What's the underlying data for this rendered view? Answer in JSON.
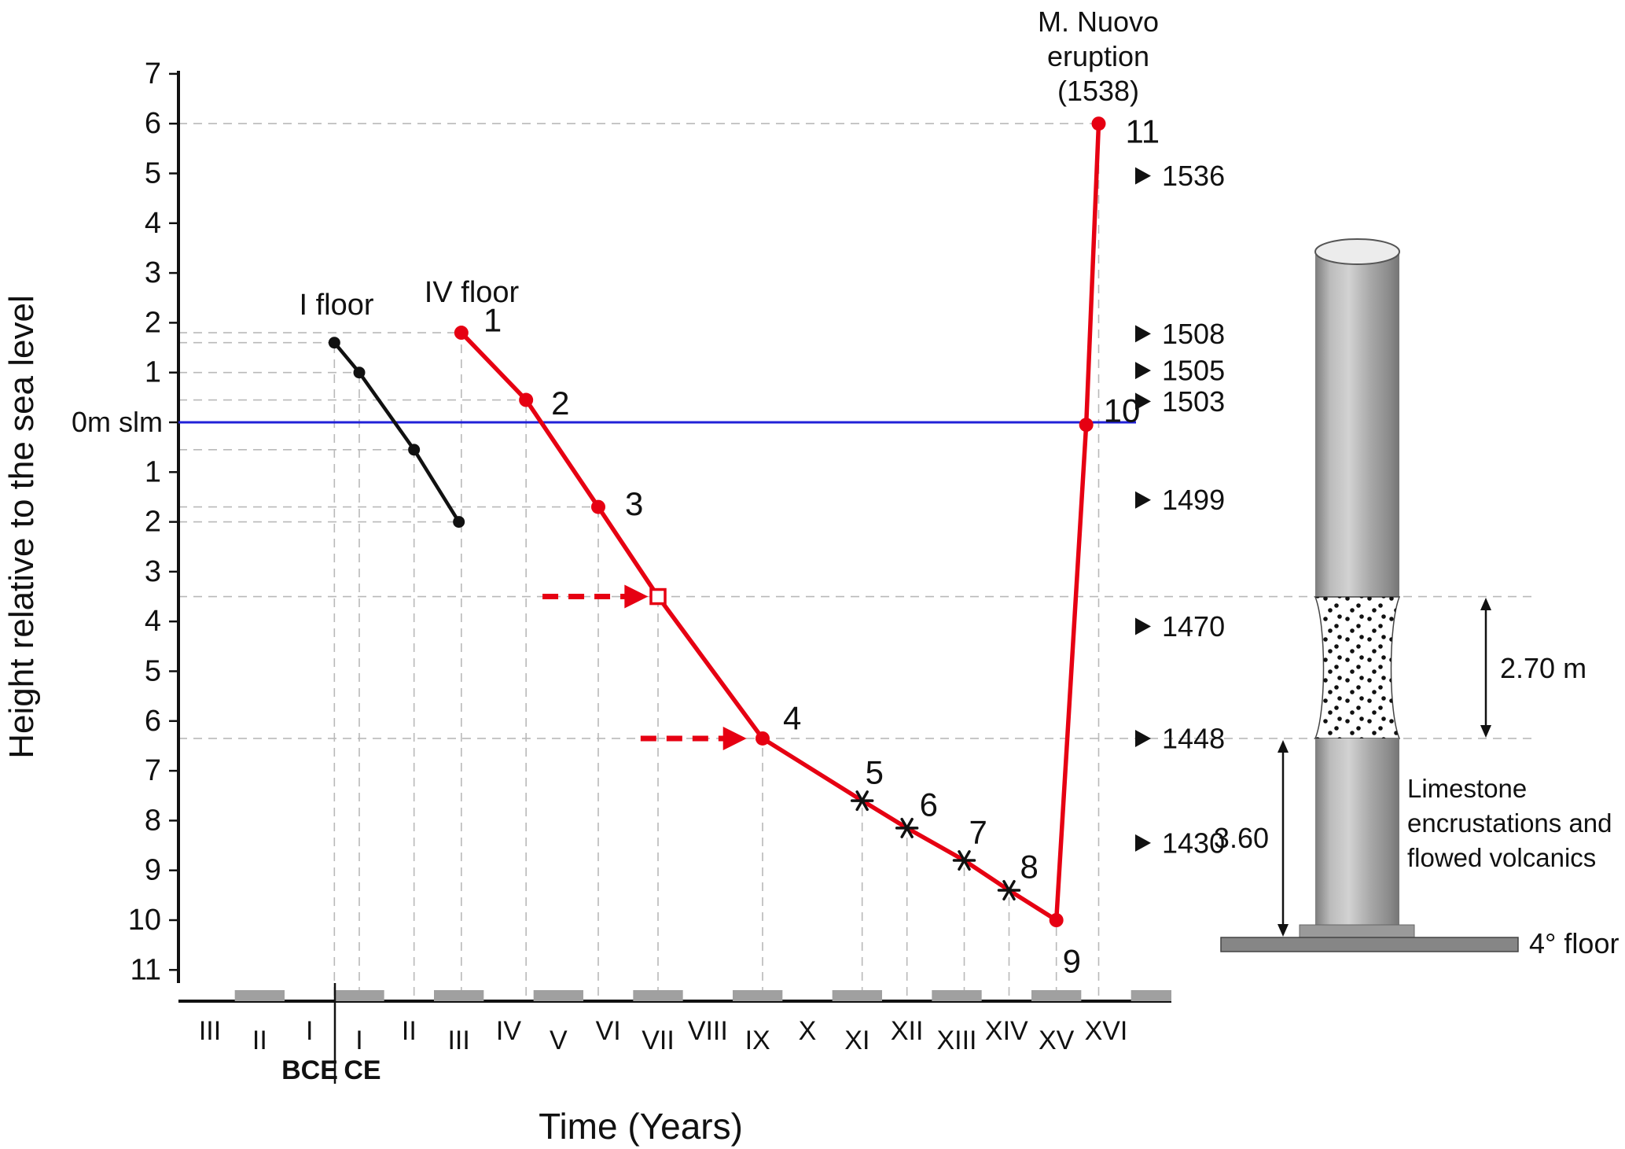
{
  "eruption_label": [
    "M. Nuovo",
    "eruption",
    "(1538)"
  ],
  "labels": {
    "floor1": "I floor",
    "floor4": "IV floor"
  },
  "axes": {
    "y_label": "Height relative to the sea level",
    "x_label": "Time (Years)",
    "zero_label": "0m slm",
    "era_left": "BCE",
    "era_right": "CE",
    "x_categories": [
      "III",
      "II",
      "I",
      "I",
      "II",
      "III",
      "IV",
      "V",
      "VI",
      "VII",
      "VIII",
      "IX",
      "X",
      "XI",
      "XII",
      "XIII",
      "XIV",
      "XV",
      "XVI"
    ],
    "y_ticks": [
      7,
      6,
      5,
      4,
      3,
      2,
      1,
      0,
      -1,
      -2,
      -3,
      -4,
      -5,
      -6,
      -7,
      -8,
      -9,
      -10,
      -11
    ]
  },
  "colors": {
    "red_series": "#e60012",
    "black_series": "#111111",
    "sea_level_blue": "#2121d8",
    "grid": "#b9b9b9"
  },
  "chart_data": {
    "type": "line",
    "note": "c = fractional index along x_categories (0 = III BCE ... 18 = XVI CE); v = height in metres relative to sea level",
    "xlabel": "Time (Years)",
    "ylabel": "Height relative to the sea level",
    "ylim": [
      -11,
      7
    ],
    "x_categories": [
      "III BCE",
      "II BCE",
      "I BCE",
      "I CE",
      "II",
      "III",
      "IV",
      "V",
      "VI",
      "VII",
      "VIII",
      "IX",
      "X",
      "XI",
      "XII",
      "XIII",
      "XIV",
      "XV",
      "XVI"
    ],
    "sea_level": {
      "label": "0m slm",
      "v": 0
    },
    "series": [
      {
        "name": "I floor",
        "color": "#111111",
        "points": [
          {
            "c": 2.5,
            "v": 1.6,
            "marker": "circle",
            "gridH": true,
            "gridV": true
          },
          {
            "c": 3.0,
            "v": 1.0,
            "marker": "circle",
            "gridH": true,
            "gridV": true
          },
          {
            "c": 4.1,
            "v": -0.55,
            "marker": "circle",
            "gridH": true,
            "gridV": true
          },
          {
            "c": 5.0,
            "v": -2.0,
            "marker": "circle",
            "gridH": true,
            "gridV": false
          }
        ]
      },
      {
        "name": "IV floor",
        "color": "#e60012",
        "points": [
          {
            "label": "1",
            "c": 5.05,
            "v": 1.8,
            "marker": "circle",
            "gridH": true,
            "gridV": true
          },
          {
            "label": "2",
            "c": 6.35,
            "v": 0.45,
            "marker": "circle",
            "gridH": true,
            "gridV": true
          },
          {
            "label": "3",
            "c": 7.8,
            "v": -1.7,
            "marker": "circle",
            "gridH": true,
            "gridV": true
          },
          {
            "label": "",
            "c": 9.0,
            "v": -3.5,
            "marker": "square",
            "gridH": "extend",
            "gridV": true
          },
          {
            "label": "4",
            "c": 11.1,
            "v": -6.35,
            "marker": "circle",
            "gridH": "extend",
            "gridV": true
          },
          {
            "label": "5",
            "c": 13.1,
            "v": -7.6,
            "marker": "star",
            "gridH": false,
            "gridV": true
          },
          {
            "label": "6",
            "c": 14.0,
            "v": -8.15,
            "marker": "star",
            "gridH": false,
            "gridV": true
          },
          {
            "label": "7",
            "c": 15.15,
            "v": -8.8,
            "marker": "star",
            "gridH": false,
            "gridV": true
          },
          {
            "label": "8",
            "c": 16.05,
            "v": -9.4,
            "marker": "star",
            "gridH": false,
            "gridV": true
          },
          {
            "label": "9",
            "c": 17.0,
            "v": -10.0,
            "marker": "circle",
            "gridH": false,
            "gridV": true
          },
          {
            "label": "10",
            "c": 17.6,
            "v": -0.05,
            "marker": "circle",
            "gridH": false,
            "gridV": false
          },
          {
            "label": "11",
            "c": 17.85,
            "v": 6.0,
            "marker": "circle",
            "gridH": true,
            "gridV": true
          }
        ]
      }
    ],
    "year_annotations": [
      {
        "year": "1536",
        "v": 4.95
      },
      {
        "year": "1508",
        "v": 1.78
      },
      {
        "year": "1505",
        "v": 1.04
      },
      {
        "year": "1503",
        "v": 0.42
      },
      {
        "year": "1499",
        "v": -1.56
      },
      {
        "year": "1470",
        "v": -4.1
      },
      {
        "year": "1448",
        "v": -6.35
      },
      {
        "year": "1430",
        "v": -8.45
      }
    ],
    "arrows": [
      {
        "v": -3.5,
        "c_tail": 6.68,
        "c_tip": 8.8
      },
      {
        "v": -6.35,
        "c_tail": 8.65,
        "c_tip": 10.78
      }
    ],
    "eruption_annotation": {
      "lines": [
        "M. Nuovo",
        "eruption",
        "(1538)"
      ],
      "c": 17.85,
      "v": 6.0
    }
  },
  "column": {
    "measure_band": "2.70 m",
    "measure_base": "3.60",
    "caption": [
      "Limestone",
      "encrustations and",
      "flowed volcanics"
    ],
    "floor_label": "4° floor"
  }
}
